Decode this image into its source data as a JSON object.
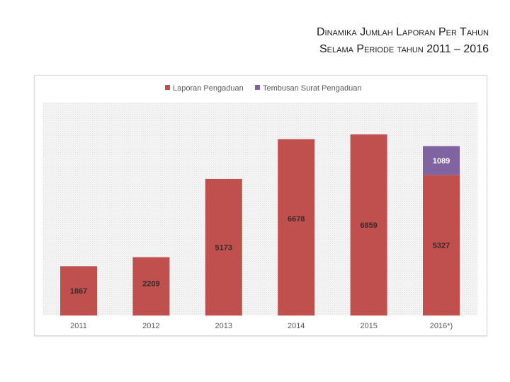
{
  "title": {
    "line1": "Dinamika Jumlah Laporan Per Tahun",
    "line2": "Selama Periode tahun 2011 – 2016"
  },
  "colors": {
    "laporan": "#c0504d",
    "tembusan": "#8064a2",
    "plot_bg": "#f2f2f2"
  },
  "chart_data": {
    "type": "bar",
    "stacked": true,
    "categories": [
      "2011",
      "2012",
      "2013",
      "2014",
      "2015",
      "2016*)"
    ],
    "series": [
      {
        "name": "Laporan Pengaduan",
        "values": [
          1867,
          2209,
          5173,
          6678,
          6859,
          5327
        ]
      },
      {
        "name": "Tembusan Surat Pengaduan",
        "values": [
          0,
          0,
          0,
          0,
          0,
          1089
        ]
      }
    ],
    "ylim": [
      0,
      7100
    ],
    "grid": false,
    "legend_position": "top",
    "xlabel": "",
    "ylabel": ""
  }
}
